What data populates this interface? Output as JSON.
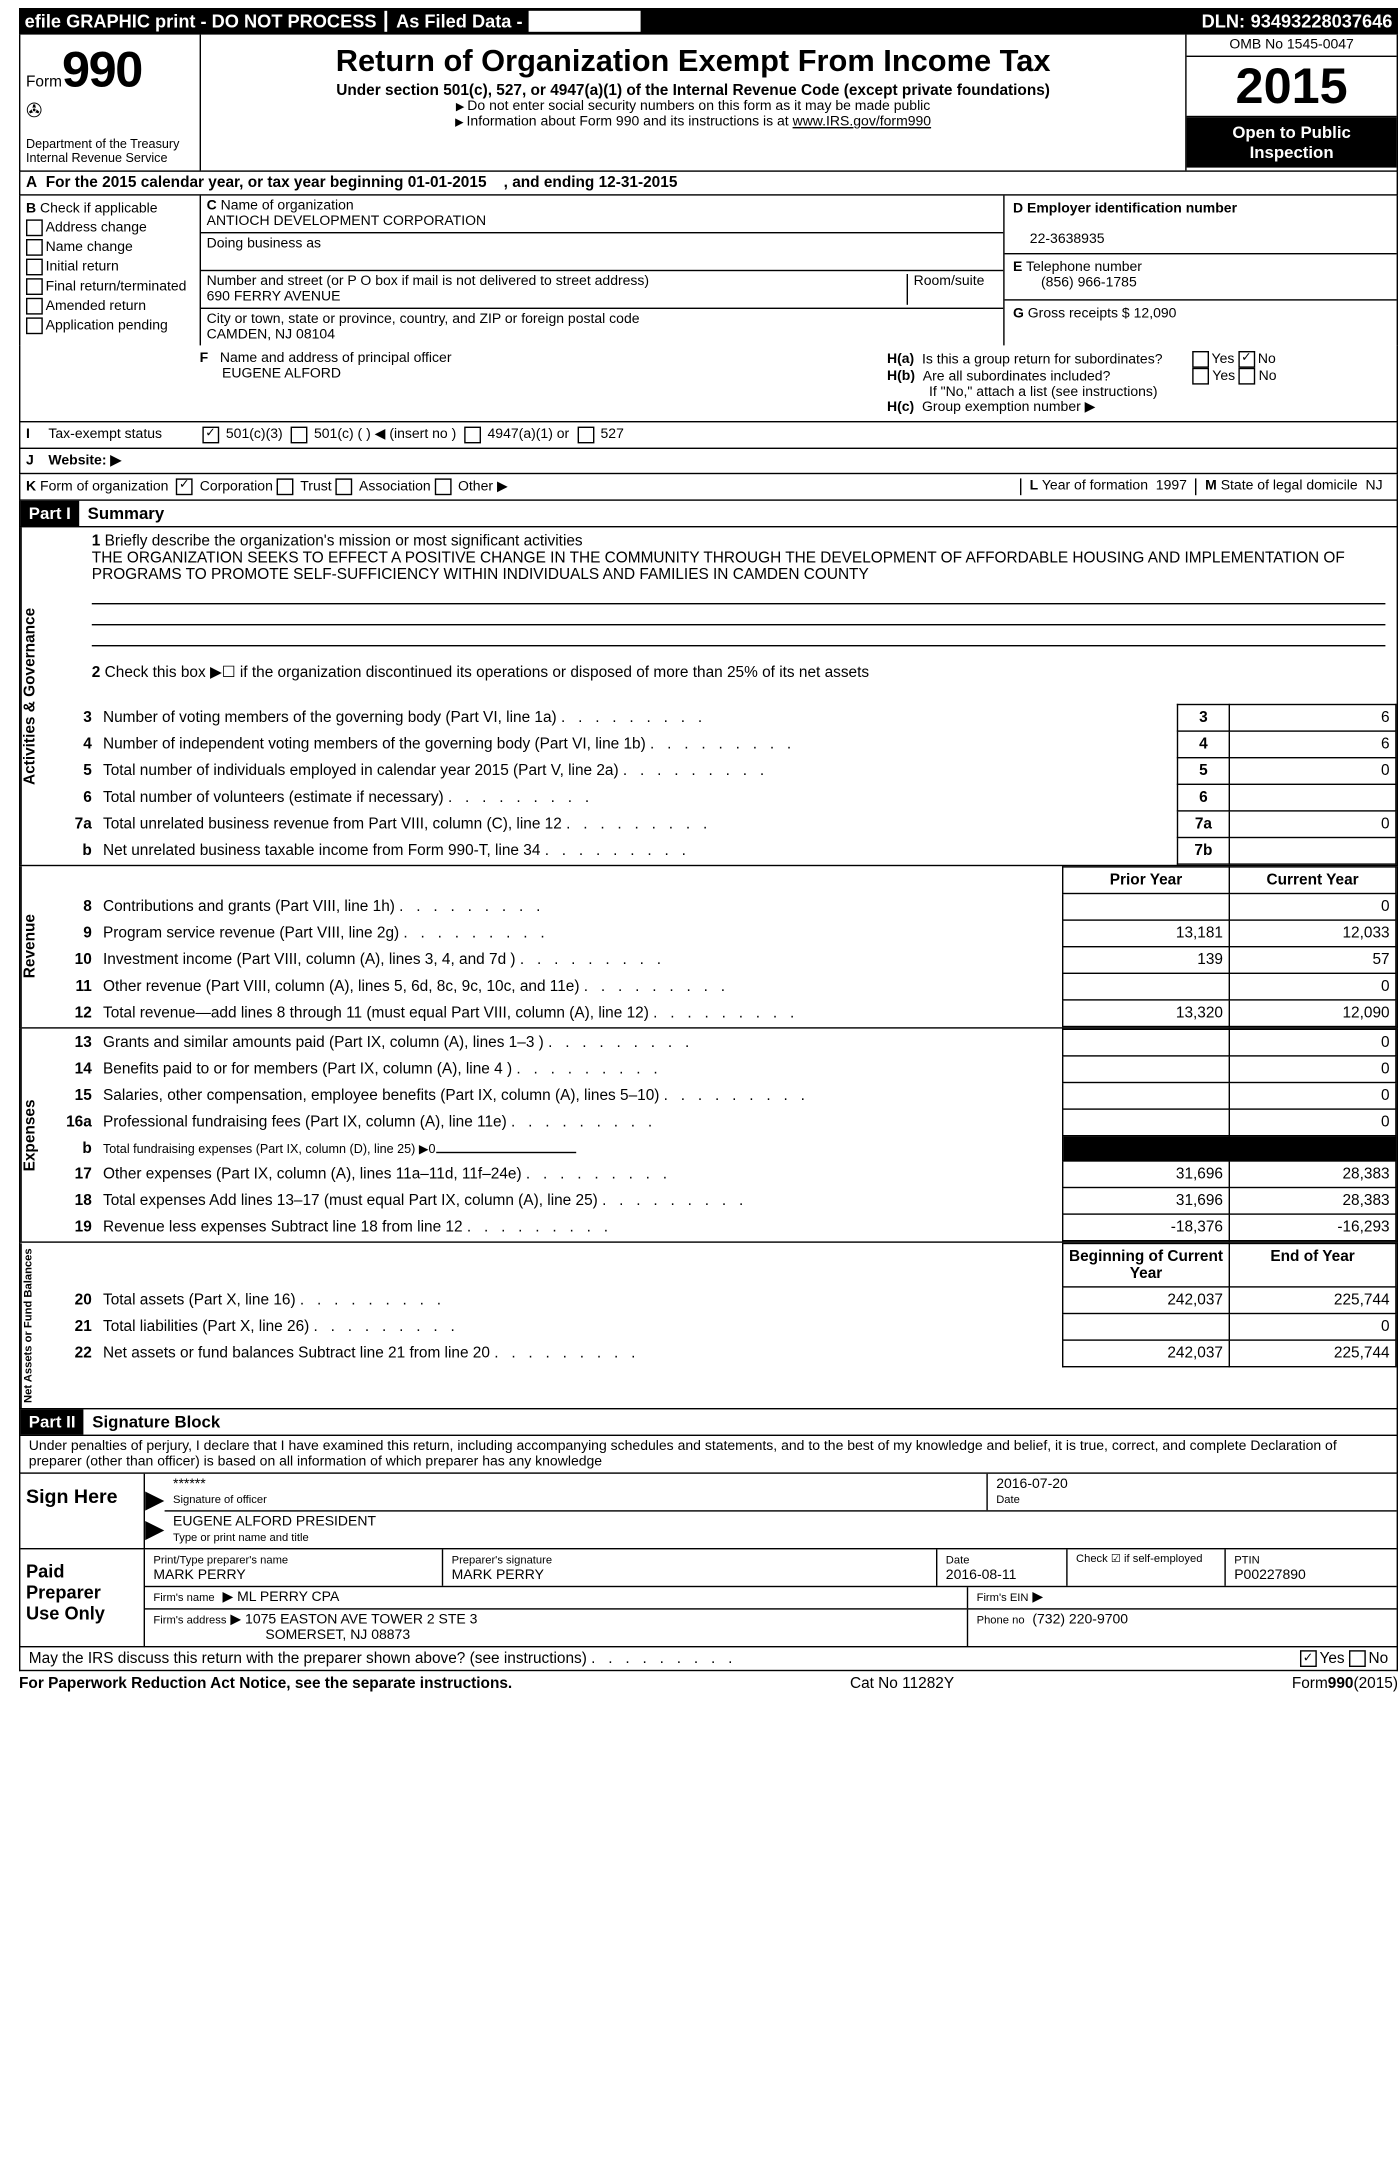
{
  "top_bar": {
    "efile": "efile GRAPHIC print - DO NOT PROCESS",
    "filed": "As Filed Data -",
    "dln_label": "DLN:",
    "dln": "93493228037646"
  },
  "header": {
    "form_label": "Form",
    "form_num": "990",
    "dept": "Department of the Treasury",
    "irs": "Internal Revenue Service",
    "title": "Return of Organization Exempt From Income Tax",
    "subtitle": "Under section 501(c), 527, or 4947(a)(1) of the Internal Revenue Code (except private foundations)",
    "note1": "Do not enter social security numbers on this form as it may be made public",
    "note2": "Information about Form 990 and its instructions is at",
    "note2_link": "www.IRS.gov/form990",
    "omb": "OMB No 1545-0047",
    "year": "2015",
    "open": "Open to Public Inspection"
  },
  "row_a": {
    "text": "For the 2015 calendar year, or tax year beginning 01-01-2015",
    "end": ", and ending 12-31-2015"
  },
  "section_b": {
    "header": "Check if applicable",
    "addr": "Address change",
    "name": "Name change",
    "initial": "Initial return",
    "final": "Final return/terminated",
    "amended": "Amended return",
    "pending": "Application pending"
  },
  "section_c": {
    "name_label": "Name of organization",
    "name": "ANTIOCH DEVELOPMENT CORPORATION",
    "dba_label": "Doing business as",
    "addr_label": "Number and street (or P O  box if mail is not delivered to street address)",
    "room_label": "Room/suite",
    "addr": "690 FERRY AVENUE",
    "city_label": "City or town, state or province, country, and ZIP or foreign postal code",
    "city": "CAMDEN, NJ  08104"
  },
  "section_d": {
    "ein_label": "Employer identification number",
    "ein": "22-3638935",
    "tel_label": "Telephone number",
    "tel": "(856) 966-1785",
    "gross_label": "Gross receipts $",
    "gross": "12,090"
  },
  "section_f": {
    "label": "Name and address of principal officer",
    "name": "EUGENE ALFORD"
  },
  "section_h": {
    "ha": "Is this a group return for subordinates?",
    "hb": "Are all subordinates included?",
    "hb_note": "If \"No,\" attach a list  (see instructions)",
    "hc": "Group exemption number",
    "yes": "Yes",
    "no": "No"
  },
  "row_i": {
    "label": "Tax-exempt status",
    "opts": [
      "501(c)(3)",
      "501(c) (  )",
      "(insert no )",
      "4947(a)(1) or",
      "527"
    ]
  },
  "row_j": {
    "label": "Website:"
  },
  "row_k": {
    "label": "Form of organization",
    "opts": [
      "Corporation",
      "Trust",
      "Association",
      "Other"
    ],
    "year_label": "Year of formation",
    "year": "1997",
    "state_label": "State of legal domicile",
    "state": "NJ"
  },
  "part1": {
    "header": "Part I",
    "title": "Summary",
    "line1_label": "Briefly describe the organization's mission or most significant activities",
    "mission": "THE ORGANIZATION SEEKS TO EFFECT A POSITIVE CHANGE IN THE COMMUNITY THROUGH THE DEVELOPMENT OF AFFORDABLE HOUSING AND IMPLEMENTATION OF PROGRAMS TO PROMOTE SELF-SUFFICIENCY WITHIN INDIVIDUALS AND FAMILIES IN CAMDEN COUNTY",
    "line2": "Check this box ▶☐ if the organization discontinued its operations or disposed of more than 25% of its net assets"
  },
  "gov_rows": [
    {
      "n": "3",
      "label": "Number of voting members of the governing body (Part VI, line 1a)",
      "box": "3",
      "val": "6"
    },
    {
      "n": "4",
      "label": "Number of independent voting members of the governing body (Part VI, line 1b)",
      "box": "4",
      "val": "6"
    },
    {
      "n": "5",
      "label": "Total number of individuals employed in calendar year 2015 (Part V, line 2a)",
      "box": "5",
      "val": "0"
    },
    {
      "n": "6",
      "label": "Total number of volunteers (estimate if necessary)",
      "box": "6",
      "val": ""
    },
    {
      "n": "7a",
      "label": "Total unrelated business revenue from Part VIII, column (C), line 12",
      "box": "7a",
      "val": "0"
    },
    {
      "n": "b",
      "label": "Net unrelated business taxable income from Form 990-T, line 34",
      "box": "7b",
      "val": ""
    }
  ],
  "rev_header": {
    "prior": "Prior Year",
    "current": "Current Year"
  },
  "rev_rows": [
    {
      "n": "8",
      "label": "Contributions and grants (Part VIII, line 1h)",
      "prior": "",
      "cur": "0"
    },
    {
      "n": "9",
      "label": "Program service revenue (Part VIII, line 2g)",
      "prior": "13,181",
      "cur": "12,033"
    },
    {
      "n": "10",
      "label": "Investment income (Part VIII, column (A), lines 3, 4, and 7d )",
      "prior": "139",
      "cur": "57"
    },
    {
      "n": "11",
      "label": "Other revenue (Part VIII, column (A), lines 5, 6d, 8c, 9c, 10c, and 11e)",
      "prior": "",
      "cur": "0"
    },
    {
      "n": "12",
      "label": "Total revenue—add lines 8 through 11 (must equal Part VIII, column (A), line 12)",
      "prior": "13,320",
      "cur": "12,090"
    }
  ],
  "exp_rows": [
    {
      "n": "13",
      "label": "Grants and similar amounts paid (Part IX, column (A), lines 1–3 )",
      "prior": "",
      "cur": "0"
    },
    {
      "n": "14",
      "label": "Benefits paid to or for members (Part IX, column (A), line 4 )",
      "prior": "",
      "cur": "0"
    },
    {
      "n": "15",
      "label": "Salaries, other compensation, employee benefits (Part IX, column (A), lines 5–10)",
      "prior": "",
      "cur": "0"
    },
    {
      "n": "16a",
      "label": "Professional fundraising fees (Part IX, column (A), line 11e)",
      "prior": "",
      "cur": "0"
    },
    {
      "n": "b",
      "label": "Total fundraising expenses (Part IX, column (D), line 25) ▶0",
      "prior": "BLOCKED",
      "cur": "BLOCKED",
      "small": true
    },
    {
      "n": "17",
      "label": "Other expenses (Part IX, column (A), lines 11a–11d, 11f–24e)",
      "prior": "31,696",
      "cur": "28,383"
    },
    {
      "n": "18",
      "label": "Total expenses  Add lines 13–17 (must equal Part IX, column (A), line 25)",
      "prior": "31,696",
      "cur": "28,383"
    },
    {
      "n": "19",
      "label": "Revenue less expenses  Subtract line 18 from line 12",
      "prior": "-18,376",
      "cur": "-16,293"
    }
  ],
  "net_header": {
    "begin": "Beginning of Current Year",
    "end": "End of Year"
  },
  "net_rows": [
    {
      "n": "20",
      "label": "Total assets (Part X, line 16)",
      "prior": "242,037",
      "cur": "225,744"
    },
    {
      "n": "21",
      "label": "Total liabilities (Part X, line 26)",
      "prior": "",
      "cur": "0"
    },
    {
      "n": "22",
      "label": "Net assets or fund balances  Subtract line 21 from line 20",
      "prior": "242,037",
      "cur": "225,744"
    }
  ],
  "side_labels": {
    "gov": "Activities & Governance",
    "rev": "Revenue",
    "exp": "Expenses",
    "net": "Net Assets or Fund Balances"
  },
  "part2": {
    "header": "Part II",
    "title": "Signature Block",
    "perjury": "Under penalties of perjury, I declare that I have examined this return, including accompanying schedules and statements, and to the best of my knowledge and belief, it is true, correct, and complete  Declaration of preparer (other than officer) is based on all information of which preparer has any knowledge"
  },
  "sign": {
    "sign_here": "Sign Here",
    "stars": "******",
    "sig_officer": "Signature of officer",
    "date_label": "Date",
    "date": "2016-07-20",
    "name": "EUGENE ALFORD PRESIDENT",
    "type_label": "Type or print name and title"
  },
  "preparer": {
    "label": "Paid Preparer Use Only",
    "print_label": "Print/Type preparer's name",
    "print_name": "MARK PERRY",
    "sig_label": "Preparer's signature",
    "sig_name": "MARK PERRY",
    "date_label": "Date",
    "date": "2016-08-11",
    "check_label": "Check ☑ if self-employed",
    "ptin_label": "PTIN",
    "ptin": "P00227890",
    "firm_name_label": "Firm's name",
    "firm_name": "ML PERRY CPA",
    "firm_ein_label": "Firm's EIN",
    "firm_addr_label": "Firm's address",
    "firm_addr1": "1075 EASTON AVE TOWER 2 STE 3",
    "firm_addr2": "SOMERSET, NJ  08873",
    "phone_label": "Phone no",
    "phone": "(732) 220-9700"
  },
  "discuss": {
    "text": "May the IRS discuss this return with the preparer shown above? (see instructions)",
    "yes": "Yes",
    "no": "No"
  },
  "footer": {
    "paperwork": "For Paperwork Reduction Act Notice, see the separate instructions.",
    "cat": "Cat No  11282Y",
    "form": "Form990(2015)"
  }
}
